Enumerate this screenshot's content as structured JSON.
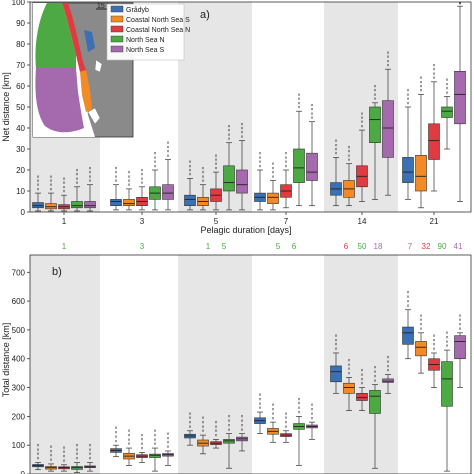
{
  "colors": {
    "grado": "#3b70b5",
    "coastal_s": "#f28b25",
    "coastal_n": "#df3b41",
    "north_n": "#4ca944",
    "north_s": "#a56aae",
    "shade": "#e6e6e6",
    "map_land": "#7f7f7f",
    "map_sea": "#ffffff"
  },
  "figure": {
    "map_scale_label": "15 km"
  },
  "chart_data": [
    {
      "type": "box",
      "panel_label": "a)",
      "xlabel": "Pelagic duration [days]",
      "ylabel": "Net distance [km]",
      "ylim": [
        0,
        100
      ],
      "yticks": [
        0,
        10,
        20,
        30,
        40,
        50,
        60,
        70,
        80,
        90,
        100
      ],
      "categories": [
        "1",
        "3",
        "5",
        "7",
        "14",
        "21"
      ],
      "legend_position": "top-left (inset map)",
      "series": [
        {
          "name": "Grådyb",
          "stats": [
            [
              0.5,
              2,
              3,
              4.5,
              9
            ],
            [
              1,
              3,
              5,
              6,
              13
            ],
            [
              1,
              3,
              6,
              8,
              16
            ],
            [
              1,
              5,
              7,
              9,
              20
            ],
            [
              3,
              8,
              11,
              14,
              26
            ],
            [
              6,
              14,
              19,
              26,
              50
            ]
          ]
        },
        {
          "name": "Coastal North Sea S",
          "stats": [
            [
              0.5,
              1.5,
              2.5,
              4,
              9
            ],
            [
              1,
              3,
              4,
              6,
              11
            ],
            [
              1,
              3,
              5,
              7,
              13
            ],
            [
              1,
              4,
              7,
              9,
              15
            ],
            [
              3,
              7,
              11,
              15,
              23
            ],
            [
              2,
              10,
              17,
              27,
              56
            ]
          ]
        },
        {
          "name": "Coastal North Sea N",
          "stats": [
            [
              0.5,
              1.5,
              2.5,
              3.5,
              8
            ],
            [
              1,
              3,
              5,
              7,
              12
            ],
            [
              1,
              5,
              8,
              11,
              19
            ],
            [
              2,
              7,
              10,
              13,
              20
            ],
            [
              5,
              12,
              17,
              22,
              39
            ],
            [
              10,
              25,
              34,
              42,
              62
            ]
          ]
        },
        {
          "name": "North Sea N",
          "stats": [
            [
              0.5,
              2,
              3,
              5,
              12
            ],
            [
              1,
              6,
              9,
              12,
              20
            ],
            [
              1,
              10,
              14,
              22,
              33
            ],
            [
              3,
              14,
              21,
              30,
              48
            ],
            [
              6,
              33,
              44,
              50,
              52
            ],
            [
              30,
              45,
              48,
              50,
              55
            ]
          ]
        },
        {
          "name": "North Sea S",
          "stats": [
            [
              0.5,
              2,
              3,
              5,
              13
            ],
            [
              1,
              6,
              9,
              13,
              25
            ],
            [
              1,
              9,
              13,
              20,
              34
            ],
            [
              3,
              15,
              19,
              28,
              43
            ],
            [
              8,
              26,
              40,
              53,
              68
            ],
            [
              5,
              42,
              56,
              67,
              98
            ]
          ]
        }
      ]
    },
    {
      "type": "box",
      "panel_label": "b)",
      "xlabel": "",
      "ylabel": "Total distance [km]",
      "ylim": [
        0,
        760
      ],
      "yticks": [
        0,
        100,
        200,
        300,
        400,
        500,
        600,
        700
      ],
      "categories": [
        "1",
        "3",
        "5",
        "7",
        "14",
        "21"
      ],
      "top_counts": [
        [
          {
            "text": "1",
            "series": 3
          }
        ],
        [
          {
            "text": "3",
            "series": 3
          }
        ],
        [
          {
            "text": "1",
            "series": 3
          },
          {
            "text": "5",
            "series": 3
          }
        ],
        [
          {
            "text": "5",
            "series": 3
          },
          {
            "text": "6",
            "series": 3
          }
        ],
        [
          {
            "text": "6",
            "series": 2
          },
          {
            "text": "50",
            "series": 3
          },
          {
            "text": "18",
            "series": 4
          }
        ],
        [
          {
            "text": "7",
            "series": 4
          },
          {
            "text": "32",
            "series": 2
          },
          {
            "text": "90",
            "series": 3
          },
          {
            "text": "41",
            "series": 4
          }
        ]
      ],
      "series": [
        {
          "name": "Grådyb",
          "stats": [
            [
              15,
              25,
              29,
              33,
              40
            ],
            [
              60,
              75,
              82,
              88,
              100
            ],
            [
              100,
              125,
              132,
              138,
              150
            ],
            [
              140,
              175,
              185,
              195,
              215
            ],
            [
              280,
              320,
              355,
              375,
              420
            ],
            [
              400,
              450,
              490,
              510,
              570
            ]
          ]
        },
        {
          "name": "Coastal North Sea S",
          "stats": [
            [
              10,
              17,
              22,
              26,
              35
            ],
            [
              30,
              52,
              62,
              72,
              90
            ],
            [
              70,
              97,
              107,
              118,
              135
            ],
            [
              110,
              138,
              148,
              158,
              180
            ],
            [
              220,
              280,
              300,
              315,
              335
            ],
            [
              350,
              410,
              440,
              460,
              490
            ]
          ]
        },
        {
          "name": "Coastal North Sea N",
          "stats": [
            [
              10,
              18,
              22,
              25,
              32
            ],
            [
              40,
              57,
              62,
              67,
              75
            ],
            [
              90,
              102,
              107,
              112,
              120
            ],
            [
              110,
              130,
              135,
              140,
              150
            ],
            [
              220,
              255,
              265,
              280,
              300
            ],
            [
              300,
              360,
              380,
              400,
              420
            ]
          ]
        },
        {
          "name": "North Sea N",
          "stats": [
            [
              5,
              16,
              22,
              26,
              40
            ],
            [
              10,
              57,
              65,
              69,
              90
            ],
            [
              20,
              107,
              115,
              120,
              140
            ],
            [
              30,
              155,
              165,
              175,
              200
            ],
            [
              20,
              210,
              270,
              290,
              310
            ],
            [
              10,
              235,
              330,
              390,
              430
            ]
          ]
        },
        {
          "name": "North Sea S",
          "stats": [
            [
              10,
              22,
              25,
              28,
              40
            ],
            [
              30,
              62,
              67,
              71,
              80
            ],
            [
              80,
              115,
              122,
              128,
              140
            ],
            [
              120,
              160,
              165,
              170,
              180
            ],
            [
              280,
              318,
              322,
              330,
              345
            ],
            [
              300,
              400,
              460,
              480,
              490
            ]
          ]
        }
      ]
    }
  ]
}
